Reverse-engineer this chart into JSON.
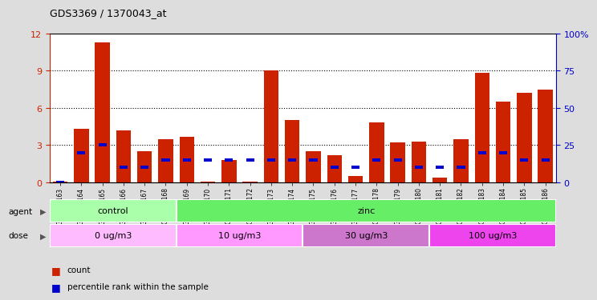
{
  "title": "GDS3369 / 1370043_at",
  "samples": [
    "GSM280163",
    "GSM280164",
    "GSM280165",
    "GSM280166",
    "GSM280167",
    "GSM280168",
    "GSM280169",
    "GSM280170",
    "GSM280171",
    "GSM280172",
    "GSM280173",
    "GSM280174",
    "GSM280175",
    "GSM280176",
    "GSM280177",
    "GSM280178",
    "GSM280179",
    "GSM280180",
    "GSM280181",
    "GSM280182",
    "GSM280183",
    "GSM280184",
    "GSM280185",
    "GSM280186"
  ],
  "count_values": [
    0.05,
    4.3,
    11.3,
    4.2,
    2.5,
    3.5,
    3.7,
    0.05,
    1.8,
    0.05,
    9.0,
    5.0,
    2.5,
    2.2,
    0.5,
    4.8,
    3.2,
    3.3,
    0.4,
    3.5,
    8.8,
    6.5,
    7.2,
    7.5
  ],
  "percentile_values": [
    0,
    20,
    25,
    10,
    10,
    15,
    15,
    15,
    15,
    15,
    15,
    15,
    15,
    10,
    10,
    15,
    15,
    10,
    10,
    10,
    20,
    20,
    15,
    15
  ],
  "bar_color": "#CC2200",
  "percentile_color": "#0000CC",
  "ylim_left": [
    0,
    12
  ],
  "ylim_right": [
    0,
    100
  ],
  "yticks_left": [
    0,
    3,
    6,
    9,
    12
  ],
  "yticks_right": [
    0,
    25,
    50,
    75,
    100
  ],
  "agent_groups": [
    {
      "label": "control",
      "start": 0,
      "end": 6,
      "color": "#AAFFAA"
    },
    {
      "label": "zinc",
      "start": 6,
      "end": 24,
      "color": "#66EE66"
    }
  ],
  "dose_groups": [
    {
      "label": "0 ug/m3",
      "start": 0,
      "end": 6,
      "color": "#FFBBFF"
    },
    {
      "label": "10 ug/m3",
      "start": 6,
      "end": 12,
      "color": "#FF99FF"
    },
    {
      "label": "30 ug/m3",
      "start": 12,
      "end": 18,
      "color": "#CC77CC"
    },
    {
      "label": "100 ug/m3",
      "start": 18,
      "end": 24,
      "color": "#EE44EE"
    }
  ],
  "legend_count_label": "count",
  "legend_percentile_label": "percentile rank within the sample",
  "bg_color": "#DDDDDD",
  "plot_bg_color": "#FFFFFF",
  "gridline_color": "#000000"
}
